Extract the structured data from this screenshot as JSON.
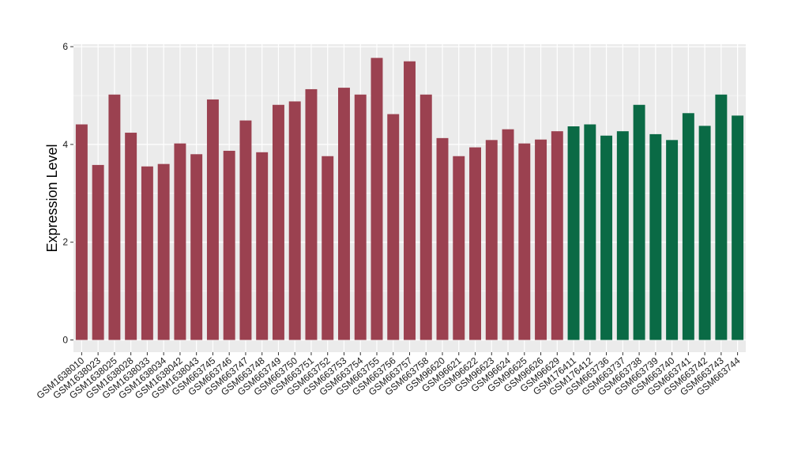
{
  "chart_data": {
    "type": "bar",
    "title": "",
    "xlabel": "",
    "ylabel": "Expression Level",
    "ylim": [
      -0.25,
      6.05
    ],
    "yticks": [
      0,
      2,
      4,
      6
    ],
    "grid": true,
    "legend": "none",
    "colors": {
      "group1": "#9b4150",
      "group2": "#0a6a45",
      "panel": "#ebebeb",
      "grid": "#ffffff"
    },
    "categories": [
      "GSM1638010",
      "GSM1638023",
      "GSM1638025",
      "GSM1638028",
      "GSM1638033",
      "GSM1638034",
      "GSM1638042",
      "GSM1638043",
      "GSM663745",
      "GSM663746",
      "GSM663747",
      "GSM663748",
      "GSM663749",
      "GSM663750",
      "GSM663751",
      "GSM663752",
      "GSM663753",
      "GSM663754",
      "GSM663755",
      "GSM663756",
      "GSM663757",
      "GSM663758",
      "GSM96620",
      "GSM96621",
      "GSM96622",
      "GSM96623",
      "GSM96624",
      "GSM96625",
      "GSM96626",
      "GSM96629",
      "GSM176411",
      "GSM176412",
      "GSM663736",
      "GSM663737",
      "GSM663738",
      "GSM663739",
      "GSM663740",
      "GSM663741",
      "GSM663742",
      "GSM663743",
      "GSM663744"
    ],
    "values": [
      4.41,
      3.58,
      5.02,
      4.24,
      3.55,
      3.6,
      4.02,
      3.8,
      4.92,
      3.87,
      4.49,
      3.84,
      4.81,
      4.88,
      5.13,
      3.76,
      5.16,
      5.02,
      5.77,
      4.62,
      5.7,
      5.02,
      4.13,
      3.76,
      3.94,
      4.09,
      4.31,
      4.02,
      4.1,
      4.27,
      4.37,
      4.41,
      4.18,
      4.27,
      4.81,
      4.21,
      4.09,
      4.64,
      4.38,
      5.02,
      4.59
    ],
    "groups": [
      1,
      1,
      1,
      1,
      1,
      1,
      1,
      1,
      1,
      1,
      1,
      1,
      1,
      1,
      1,
      1,
      1,
      1,
      1,
      1,
      1,
      1,
      1,
      1,
      1,
      1,
      1,
      1,
      1,
      1,
      2,
      2,
      2,
      2,
      2,
      2,
      2,
      2,
      2,
      2,
      2
    ]
  }
}
